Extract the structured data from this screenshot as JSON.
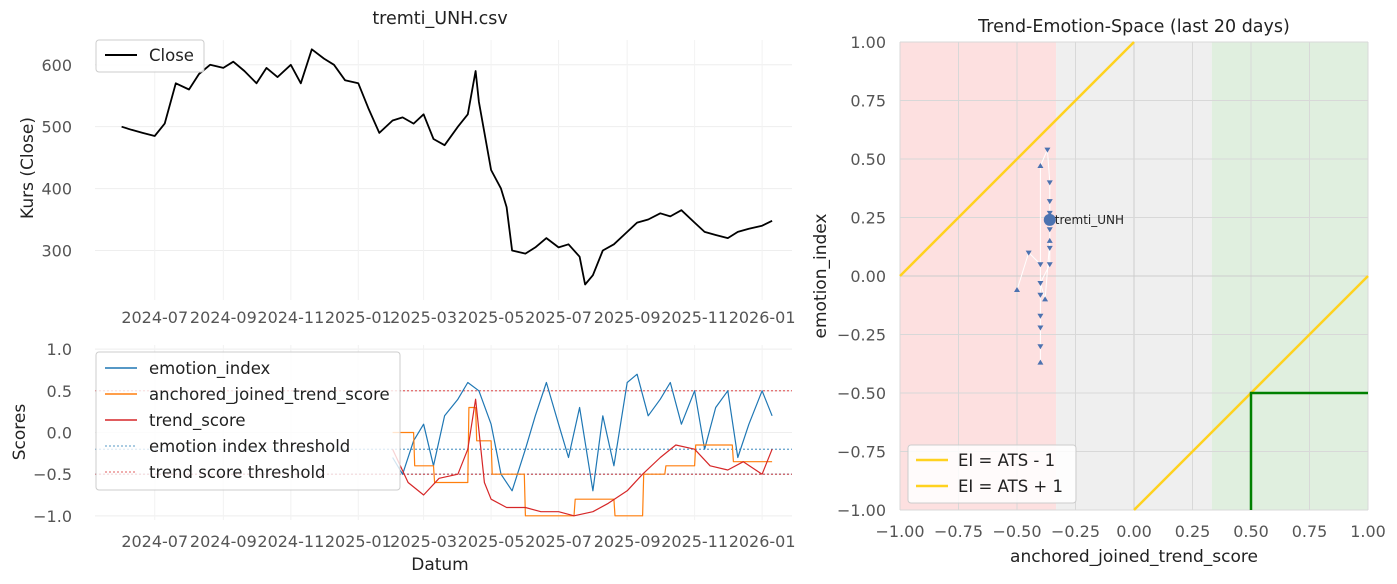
{
  "chart_data": [
    {
      "type": "line",
      "title": "tremti_UNH.csv",
      "xlabel": "",
      "ylabel": "Kurs (Close)",
      "x_tick_labels": [
        "2024-07",
        "2024-09",
        "2024-11",
        "2025-01",
        "2025-03",
        "2025-05",
        "2025-07",
        "2025-09",
        "2025-11",
        "2026-01"
      ],
      "y_ticks": [
        300,
        400,
        500,
        600
      ],
      "ylim": [
        220,
        640
      ],
      "xlim": [
        "2024-05-08",
        "2026-01-28"
      ],
      "legend": {
        "position": "upper-left",
        "entries": [
          "Close"
        ]
      },
      "series": [
        {
          "name": "Close",
          "color": "#000000",
          "x": [
            "2024-06-01",
            "2024-06-10",
            "2024-06-20",
            "2024-07-01",
            "2024-07-10",
            "2024-07-20",
            "2024-08-01",
            "2024-08-10",
            "2024-08-20",
            "2024-09-01",
            "2024-09-10",
            "2024-09-20",
            "2024-10-01",
            "2024-10-10",
            "2024-10-20",
            "2024-11-01",
            "2024-11-10",
            "2024-11-20",
            "2024-12-01",
            "2024-12-10",
            "2024-12-20",
            "2025-01-01",
            "2025-01-10",
            "2025-01-20",
            "2025-02-01",
            "2025-02-10",
            "2025-02-20",
            "2025-03-01",
            "2025-03-10",
            "2025-03-20",
            "2025-04-01",
            "2025-04-10",
            "2025-04-17",
            "2025-04-20",
            "2025-05-01",
            "2025-05-10",
            "2025-05-15",
            "2025-05-20",
            "2025-06-01",
            "2025-06-10",
            "2025-06-20",
            "2025-07-01",
            "2025-07-10",
            "2025-07-20",
            "2025-07-25",
            "2025-08-01",
            "2025-08-10",
            "2025-08-20",
            "2025-09-01",
            "2025-09-10",
            "2025-09-20",
            "2025-10-01",
            "2025-10-10",
            "2025-10-20",
            "2025-11-01",
            "2025-11-10",
            "2025-11-20",
            "2025-12-01",
            "2025-12-10",
            "2025-12-20",
            "2026-01-01",
            "2026-01-10"
          ],
          "values": [
            500,
            495,
            490,
            485,
            505,
            570,
            560,
            585,
            600,
            595,
            605,
            590,
            570,
            595,
            580,
            600,
            570,
            625,
            610,
            600,
            575,
            570,
            530,
            490,
            510,
            515,
            505,
            520,
            480,
            470,
            500,
            520,
            590,
            540,
            430,
            400,
            370,
            300,
            295,
            305,
            320,
            305,
            310,
            290,
            245,
            260,
            300,
            310,
            330,
            345,
            350,
            360,
            355,
            365,
            345,
            330,
            325,
            320,
            330,
            335,
            340,
            348
          ]
        }
      ]
    },
    {
      "type": "line",
      "title": "",
      "xlabel": "Datum",
      "ylabel": "Scores",
      "x_tick_labels": [
        "2024-07",
        "2024-09",
        "2024-11",
        "2025-01",
        "2025-03",
        "2025-05",
        "2025-07",
        "2025-09",
        "2025-11",
        "2026-01"
      ],
      "y_ticks": [
        -1.0,
        -0.5,
        0.0,
        0.5,
        1.0
      ],
      "y_tick_labels": [
        "−1.0",
        "−0.5",
        "0.0",
        "0.5",
        "1.0"
      ],
      "ylim": [
        -1.05,
        1.05
      ],
      "xlim": [
        "2024-05-08",
        "2026-01-28"
      ],
      "legend": {
        "position": "upper-left",
        "entries": [
          "emotion_index",
          "anchored_joined_trend_score",
          "trend_score",
          "emotion index threshold",
          "trend score threshold"
        ]
      },
      "series": [
        {
          "name": "emotion_index",
          "color": "#1f77b4",
          "x": [
            "2025-02-01",
            "2025-02-10",
            "2025-02-20",
            "2025-03-01",
            "2025-03-10",
            "2025-03-20",
            "2025-04-01",
            "2025-04-10",
            "2025-04-20",
            "2025-05-01",
            "2025-05-10",
            "2025-05-20",
            "2025-06-01",
            "2025-06-10",
            "2025-06-20",
            "2025-07-01",
            "2025-07-10",
            "2025-07-20",
            "2025-08-01",
            "2025-08-10",
            "2025-08-20",
            "2025-09-01",
            "2025-09-10",
            "2025-09-20",
            "2025-10-01",
            "2025-10-10",
            "2025-10-20",
            "2025-11-01",
            "2025-11-10",
            "2025-11-20",
            "2025-12-01",
            "2025-12-10",
            "2025-12-20",
            "2026-01-01",
            "2026-01-10"
          ],
          "values": [
            -0.3,
            -0.5,
            -0.1,
            0.1,
            -0.4,
            0.2,
            0.4,
            0.6,
            0.5,
            0.1,
            -0.5,
            -0.7,
            -0.2,
            0.2,
            0.6,
            0.1,
            -0.3,
            0.3,
            -0.7,
            0.2,
            -0.4,
            0.6,
            0.7,
            0.2,
            0.4,
            0.6,
            0.1,
            0.5,
            -0.2,
            0.3,
            0.5,
            -0.3,
            0.1,
            0.5,
            0.2
          ]
        },
        {
          "name": "anchored_joined_trend_score",
          "color": "#ff7f0e",
          "x": [
            "2025-02-01",
            "2025-02-20",
            "2025-02-21",
            "2025-03-10",
            "2025-03-11",
            "2025-04-10",
            "2025-04-11",
            "2025-04-17",
            "2025-04-18",
            "2025-05-01",
            "2025-05-02",
            "2025-05-31",
            "2025-06-01",
            "2025-07-15",
            "2025-07-16",
            "2025-08-20",
            "2025-08-21",
            "2025-09-15",
            "2025-09-16",
            "2025-10-05",
            "2025-10-06",
            "2025-11-01",
            "2025-11-02",
            "2025-12-05",
            "2025-12-06",
            "2026-01-10"
          ],
          "values": [
            0.0,
            0.0,
            -0.4,
            -0.4,
            -0.6,
            -0.6,
            0.3,
            0.3,
            -0.1,
            -0.1,
            -0.5,
            -0.5,
            -1.0,
            -1.0,
            -0.8,
            -0.8,
            -1.0,
            -1.0,
            -0.5,
            -0.5,
            -0.4,
            -0.4,
            -0.15,
            -0.15,
            -0.35,
            -0.35
          ]
        },
        {
          "name": "trend_score",
          "color": "#d62728",
          "x": [
            "2025-02-01",
            "2025-02-15",
            "2025-03-01",
            "2025-03-15",
            "2025-04-01",
            "2025-04-10",
            "2025-04-17",
            "2025-04-25",
            "2025-05-01",
            "2025-05-15",
            "2025-06-01",
            "2025-06-15",
            "2025-07-01",
            "2025-07-15",
            "2025-08-01",
            "2025-08-15",
            "2025-09-01",
            "2025-09-15",
            "2025-10-01",
            "2025-10-15",
            "2025-11-01",
            "2025-11-15",
            "2025-12-01",
            "2025-12-15",
            "2026-01-01",
            "2026-01-10"
          ],
          "values": [
            -0.2,
            -0.6,
            -0.75,
            -0.55,
            -0.5,
            -0.2,
            0.4,
            -0.6,
            -0.8,
            -0.9,
            -0.9,
            -0.95,
            -0.95,
            -1.0,
            -0.95,
            -0.85,
            -0.7,
            -0.5,
            -0.3,
            -0.15,
            -0.2,
            -0.4,
            -0.45,
            -0.35,
            -0.5,
            -0.2
          ]
        }
      ],
      "thresholds": [
        {
          "name": "emotion index threshold",
          "values": [
            -0.2,
            -0.5
          ],
          "color": "#1f77b4"
        },
        {
          "name": "trend score threshold",
          "values": [
            0.5,
            -0.5
          ],
          "color": "#d62728"
        }
      ]
    },
    {
      "type": "scatter",
      "title": "Trend-Emotion-Space (last 20 days)",
      "xlabel": "anchored_joined_trend_score",
      "ylabel": "emotion_index",
      "xlim": [
        -1.0,
        1.0
      ],
      "ylim": [
        -1.0,
        1.0
      ],
      "x_ticks": [
        -1.0,
        -0.75,
        -0.5,
        -0.25,
        0.0,
        0.25,
        0.5,
        0.75,
        1.0
      ],
      "x_tick_labels": [
        "−1.00",
        "−0.75",
        "−0.50",
        "−0.25",
        "0.00",
        "0.25",
        "0.50",
        "0.75",
        "1.00"
      ],
      "y_ticks": [
        1.0,
        0.75,
        0.5,
        0.25,
        0.0,
        -0.25,
        -0.5,
        -0.75,
        -1.0
      ],
      "y_tick_labels": [
        "1.00",
        "0.75",
        "0.50",
        "0.25",
        "0.00",
        "−0.25",
        "−0.50",
        "−0.75",
        "−1.00"
      ],
      "regions": [
        {
          "x": [
            -1.0,
            -0.333
          ],
          "color": "#fde0e0"
        },
        {
          "x": [
            -0.333,
            0.333
          ],
          "color": "#efefef"
        },
        {
          "x": [
            0.333,
            1.0
          ],
          "color": "#e0efdf"
        }
      ],
      "lines": [
        {
          "name": "EI = ATS - 1",
          "color": "#ffd21f",
          "slope": 1,
          "intercept": -1
        },
        {
          "name": "EI = ATS + 1",
          "color": "#ffd21f",
          "slope": 1,
          "intercept": 1
        }
      ],
      "box": {
        "color": "#008000",
        "x": [
          0.5,
          1.0
        ],
        "y": [
          -1.0,
          -0.5
        ]
      },
      "trail": {
        "color": "#4c72b0",
        "points": [
          [
            -0.5,
            -0.06
          ],
          [
            -0.45,
            0.1
          ],
          [
            -0.4,
            0.05
          ],
          [
            -0.4,
            -0.08
          ],
          [
            -0.4,
            -0.17
          ],
          [
            -0.4,
            -0.22
          ],
          [
            -0.4,
            -0.3
          ],
          [
            -0.4,
            -0.37
          ],
          [
            -0.4,
            0.47
          ],
          [
            -0.37,
            0.54
          ],
          [
            -0.36,
            0.4
          ],
          [
            -0.36,
            0.32
          ],
          [
            -0.36,
            0.27
          ],
          [
            -0.36,
            0.2
          ],
          [
            -0.36,
            0.12
          ],
          [
            -0.36,
            0.05
          ],
          [
            -0.4,
            -0.03
          ],
          [
            -0.38,
            -0.1
          ],
          [
            -0.36,
            0.15
          ],
          [
            -0.36,
            0.24
          ]
        ],
        "current": {
          "label": "tremti_UNH",
          "x": -0.36,
          "y": 0.24
        }
      },
      "legend": {
        "position": "lower-left",
        "entries": [
          "EI = ATS - 1",
          "EI = ATS + 1"
        ]
      }
    }
  ]
}
